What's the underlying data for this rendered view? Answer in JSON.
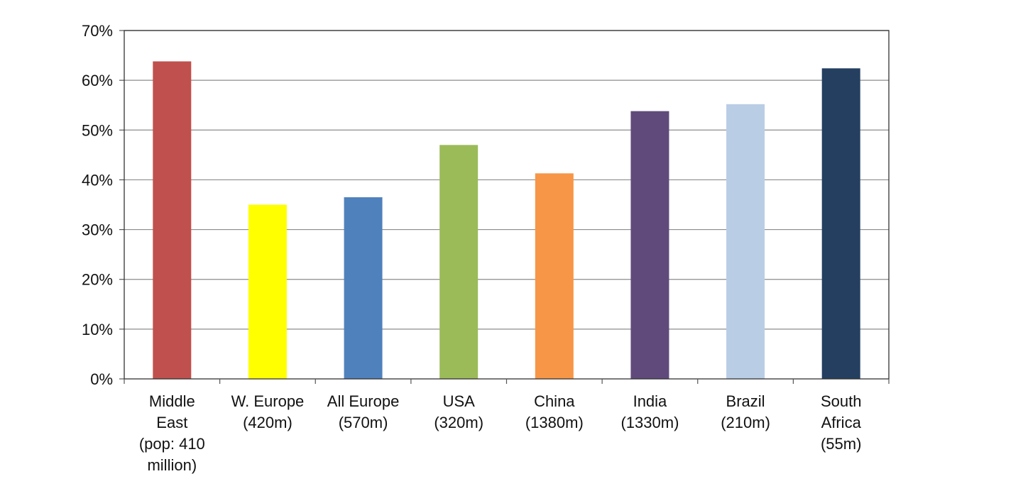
{
  "chart_data": {
    "type": "bar",
    "title": "",
    "xlabel": "",
    "ylabel": "",
    "ylim": [
      0,
      70
    ],
    "y_ticks": [
      "0%",
      "10%",
      "20%",
      "30%",
      "40%",
      "50%",
      "60%",
      "70%"
    ],
    "grid": true,
    "legend": "none",
    "categories": [
      [
        "Middle",
        "East",
        "(pop: 410",
        "million)"
      ],
      [
        "W. Europe",
        "(420m)"
      ],
      [
        "All Europe",
        "(570m)"
      ],
      [
        "USA",
        "(320m)"
      ],
      [
        "China",
        "(1380m)"
      ],
      [
        "India",
        "(1330m)"
      ],
      [
        "Brazil",
        "(210m)"
      ],
      [
        "South",
        "Africa",
        "(55m)"
      ]
    ],
    "values": [
      63.8,
      35.0,
      36.5,
      47.0,
      41.3,
      53.8,
      55.2,
      62.4
    ],
    "colors": [
      "#C0504D",
      "#FFFF00",
      "#4F81BD",
      "#9BBB59",
      "#F79646",
      "#604A7B",
      "#B9CDE5",
      "#243F60"
    ]
  }
}
